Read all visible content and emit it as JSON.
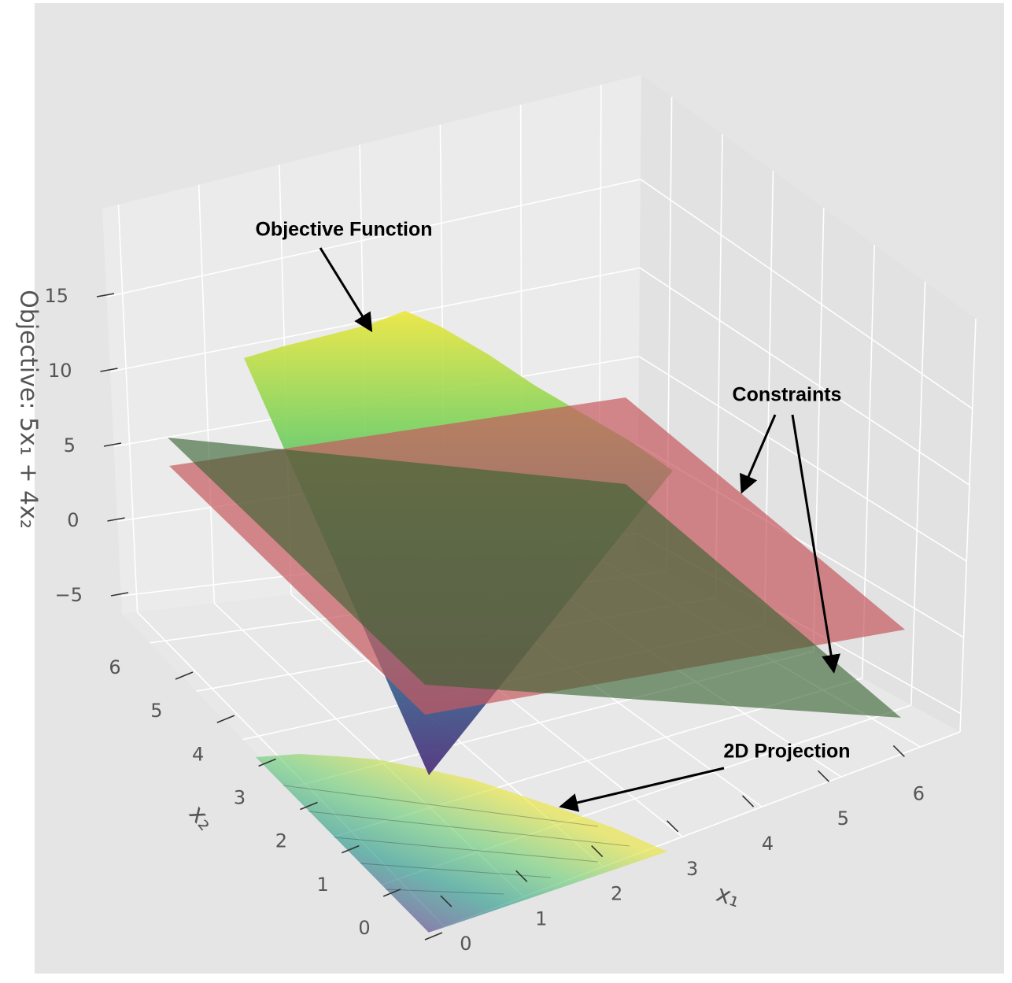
{
  "chart_data": {
    "type": "surface3d",
    "xlabel": "x₁",
    "ylabel": "x₂",
    "zlabel": "Objective: 5x₁ + 4x₂",
    "xlim": [
      -0.2,
      6.5
    ],
    "ylim": [
      0,
      6.6
    ],
    "zlim": [
      -6.2,
      20.9
    ],
    "xticks": [
      0,
      1,
      2,
      3,
      4,
      5,
      6
    ],
    "yticks": [
      0,
      1,
      2,
      3,
      4,
      5,
      6
    ],
    "zticks": [
      {
        "value": -5,
        "label": "−5"
      },
      0,
      5,
      10,
      15
    ],
    "grid": true,
    "annotations": [
      "Objective Function",
      "Constraints",
      "2D Projection"
    ]
  }
}
